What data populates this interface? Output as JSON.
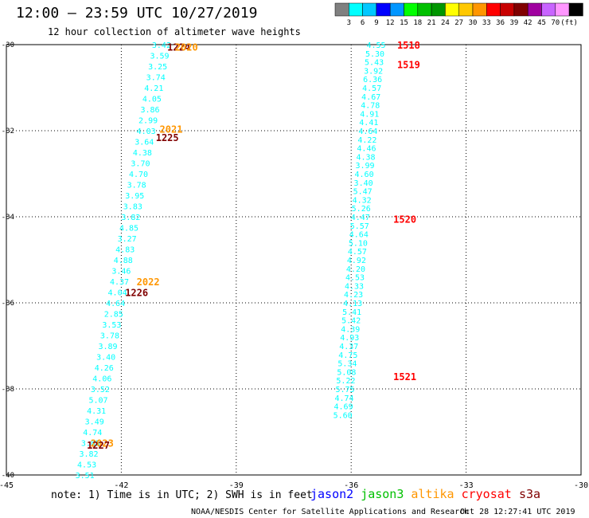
{
  "header": {
    "title": "12:00 – 23:59 UTC 10/27/2019",
    "subtitle": "12 hour collection of altimeter wave heights"
  },
  "colorbar": {
    "colors": [
      "#808080",
      "#00ffff",
      "#00c8ff",
      "#0000ff",
      "#0096ff",
      "#00ff00",
      "#00c000",
      "#009600",
      "#ffff00",
      "#ffc800",
      "#ff9600",
      "#ff0000",
      "#c80000",
      "#800000",
      "#a000a0",
      "#c864ff",
      "#ff96ff",
      "#000000"
    ],
    "labels": [
      "3",
      "6",
      "9",
      "12",
      "15",
      "18",
      "21",
      "24",
      "27",
      "30",
      "33",
      "36",
      "39",
      "42",
      "45",
      "70",
      "(ft)"
    ]
  },
  "chart_data": {
    "type": "scatter",
    "xlim": [
      -45,
      -30
    ],
    "ylim": [
      -40,
      -30
    ],
    "x_ticks": [
      "-45",
      "-42",
      "-39",
      "-36",
      "-33",
      "-30"
    ],
    "y_ticks": [
      "-30",
      "-32",
      "-34",
      "-36",
      "-38",
      "-40"
    ],
    "grid": true,
    "track_east": {
      "color": "#00ffff",
      "points": [
        {
          "x": -35.35,
          "y": -30.0,
          "v": "4.55"
        },
        {
          "x": -35.38,
          "y": -30.2,
          "v": "5.30"
        },
        {
          "x": -35.4,
          "y": -30.4,
          "v": "5.43"
        },
        {
          "x": -35.42,
          "y": -30.6,
          "v": "3.92"
        },
        {
          "x": -35.44,
          "y": -30.8,
          "v": "6.36"
        },
        {
          "x": -35.46,
          "y": -31.0,
          "v": "4.57"
        },
        {
          "x": -35.48,
          "y": -31.2,
          "v": "4.67"
        },
        {
          "x": -35.5,
          "y": -31.4,
          "v": "4.78"
        },
        {
          "x": -35.52,
          "y": -31.6,
          "v": "4.91"
        },
        {
          "x": -35.54,
          "y": -31.8,
          "v": "4.41"
        },
        {
          "x": -35.56,
          "y": -32.0,
          "v": "4.64"
        },
        {
          "x": -35.58,
          "y": -32.2,
          "v": "4.22"
        },
        {
          "x": -35.6,
          "y": -32.4,
          "v": "4.46"
        },
        {
          "x": -35.62,
          "y": -32.6,
          "v": "4.38"
        },
        {
          "x": -35.64,
          "y": -32.8,
          "v": "3.99"
        },
        {
          "x": -35.66,
          "y": -33.0,
          "v": "4.60"
        },
        {
          "x": -35.68,
          "y": -33.2,
          "v": "3.40"
        },
        {
          "x": -35.7,
          "y": -33.4,
          "v": "5.47"
        },
        {
          "x": -35.72,
          "y": -33.6,
          "v": "4.32"
        },
        {
          "x": -35.74,
          "y": -33.8,
          "v": "5.26"
        },
        {
          "x": -35.76,
          "y": -34.0,
          "v": "4.47"
        },
        {
          "x": -35.78,
          "y": -34.2,
          "v": "5.57"
        },
        {
          "x": -35.8,
          "y": -34.4,
          "v": "4.64"
        },
        {
          "x": -35.82,
          "y": -34.6,
          "v": "5.10"
        },
        {
          "x": -35.84,
          "y": -34.8,
          "v": "4.57"
        },
        {
          "x": -35.86,
          "y": -35.0,
          "v": "4.92"
        },
        {
          "x": -35.88,
          "y": -35.2,
          "v": "4.20"
        },
        {
          "x": -35.9,
          "y": -35.4,
          "v": "4.53"
        },
        {
          "x": -35.92,
          "y": -35.6,
          "v": "4.33"
        },
        {
          "x": -35.94,
          "y": -35.8,
          "v": "4.23"
        },
        {
          "x": -35.96,
          "y": -36.0,
          "v": "4.13"
        },
        {
          "x": -35.98,
          "y": -36.2,
          "v": "5.41"
        },
        {
          "x": -36.0,
          "y": -36.4,
          "v": "5.42"
        },
        {
          "x": -36.02,
          "y": -36.6,
          "v": "4.39"
        },
        {
          "x": -36.04,
          "y": -36.8,
          "v": "4.93"
        },
        {
          "x": -36.06,
          "y": -37.0,
          "v": "4.37"
        },
        {
          "x": -36.08,
          "y": -37.2,
          "v": "4.75"
        },
        {
          "x": -36.1,
          "y": -37.4,
          "v": "5.34"
        },
        {
          "x": -36.12,
          "y": -37.6,
          "v": "5.08"
        },
        {
          "x": -36.14,
          "y": -37.8,
          "v": "5.22"
        },
        {
          "x": -36.16,
          "y": -38.0,
          "v": "5.75"
        },
        {
          "x": -36.18,
          "y": -38.2,
          "v": "4.74"
        },
        {
          "x": -36.2,
          "y": -38.4,
          "v": "4.69"
        },
        {
          "x": -36.22,
          "y": -38.6,
          "v": "5.60"
        }
      ]
    },
    "track_west": {
      "color": "#00ffff",
      "points": [
        {
          "x": -40.95,
          "y": -30.0,
          "v": "3.42"
        },
        {
          "x": -41.0,
          "y": -30.25,
          "v": "3.59"
        },
        {
          "x": -41.05,
          "y": -30.5,
          "v": "3.25"
        },
        {
          "x": -41.1,
          "y": -30.75,
          "v": "3.74"
        },
        {
          "x": -41.15,
          "y": -31.0,
          "v": "4.21"
        },
        {
          "x": -41.2,
          "y": -31.25,
          "v": "4.05"
        },
        {
          "x": -41.25,
          "y": -31.5,
          "v": "3.86"
        },
        {
          "x": -41.3,
          "y": -31.75,
          "v": "2.99"
        },
        {
          "x": -41.35,
          "y": -32.0,
          "v": "4.03"
        },
        {
          "x": -41.4,
          "y": -32.25,
          "v": "3.64"
        },
        {
          "x": -41.45,
          "y": -32.5,
          "v": "4.38"
        },
        {
          "x": -41.5,
          "y": -32.75,
          "v": "3.70"
        },
        {
          "x": -41.55,
          "y": -33.0,
          "v": "4.70"
        },
        {
          "x": -41.6,
          "y": -33.25,
          "v": "3.78"
        },
        {
          "x": -41.65,
          "y": -33.5,
          "v": "3.95"
        },
        {
          "x": -41.7,
          "y": -33.75,
          "v": "3.83"
        },
        {
          "x": -41.75,
          "y": -34.0,
          "v": "3.82"
        },
        {
          "x": -41.8,
          "y": -34.25,
          "v": "4.85"
        },
        {
          "x": -41.85,
          "y": -34.5,
          "v": "3.27"
        },
        {
          "x": -41.9,
          "y": -34.75,
          "v": "4.83"
        },
        {
          "x": -41.95,
          "y": -35.0,
          "v": "4.88"
        },
        {
          "x": -42.0,
          "y": -35.25,
          "v": "3.46"
        },
        {
          "x": -42.05,
          "y": -35.5,
          "v": "4.37"
        },
        {
          "x": -42.1,
          "y": -35.75,
          "v": "4.04"
        },
        {
          "x": -42.15,
          "y": -36.0,
          "v": "4.64"
        },
        {
          "x": -42.2,
          "y": -36.25,
          "v": "2.85"
        },
        {
          "x": -42.25,
          "y": -36.5,
          "v": "3.53"
        },
        {
          "x": -42.3,
          "y": -36.75,
          "v": "3.78"
        },
        {
          "x": -42.35,
          "y": -37.0,
          "v": "3.89"
        },
        {
          "x": -42.4,
          "y": -37.25,
          "v": "3.40"
        },
        {
          "x": -42.45,
          "y": -37.5,
          "v": "4.26"
        },
        {
          "x": -42.5,
          "y": -37.75,
          "v": "4.06"
        },
        {
          "x": -42.55,
          "y": -38.0,
          "v": "3.52"
        },
        {
          "x": -42.6,
          "y": -38.25,
          "v": "5.07"
        },
        {
          "x": -42.65,
          "y": -38.5,
          "v": "4.31"
        },
        {
          "x": -42.7,
          "y": -38.75,
          "v": "3.49"
        },
        {
          "x": -42.75,
          "y": -39.0,
          "v": "4.74"
        },
        {
          "x": -42.8,
          "y": -39.25,
          "v": "3.85"
        },
        {
          "x": -42.85,
          "y": -39.5,
          "v": "3.82"
        },
        {
          "x": -42.9,
          "y": -39.75,
          "v": "4.53"
        },
        {
          "x": -42.95,
          "y": -40.0,
          "v": "3.51"
        }
      ]
    },
    "time_labels": [
      {
        "x": -40.8,
        "y": -30.05,
        "text": "1224",
        "color": "#800000"
      },
      {
        "x": -40.6,
        "y": -30.05,
        "text": "2020",
        "color": "#ff9600"
      },
      {
        "x": -41.0,
        "y": -31.95,
        "text": "2021",
        "color": "#ff9600"
      },
      {
        "x": -41.1,
        "y": -32.15,
        "text": "1225",
        "color": "#800000"
      },
      {
        "x": -41.6,
        "y": -35.5,
        "text": "2022",
        "color": "#ff9600"
      },
      {
        "x": -41.9,
        "y": -35.75,
        "text": "1226",
        "color": "#800000"
      },
      {
        "x": -42.8,
        "y": -39.25,
        "text": "2023",
        "color": "#ff9600"
      },
      {
        "x": -42.9,
        "y": -39.3,
        "text": "1227",
        "color": "#800000"
      },
      {
        "x": -34.8,
        "y": -30.0,
        "text": "1518",
        "color": "#ff0000"
      },
      {
        "x": -34.8,
        "y": -30.45,
        "text": "1519",
        "color": "#ff0000"
      },
      {
        "x": -34.9,
        "y": -34.05,
        "text": "1520",
        "color": "#ff0000"
      },
      {
        "x": -34.9,
        "y": -37.7,
        "text": "1521",
        "color": "#ff0000"
      }
    ]
  },
  "footer": {
    "note": "note: 1) Time is in UTC; 2) SWH is in feet",
    "legend": [
      {
        "label": "jason2",
        "color": "#0000ff"
      },
      {
        "label": "jason3",
        "color": "#00c000"
      },
      {
        "label": "altika",
        "color": "#ff9600"
      },
      {
        "label": "cryosat",
        "color": "#ff0000"
      },
      {
        "label": "s3a",
        "color": "#800000"
      }
    ],
    "credit": "NOAA/NESDIS Center for Satellite Applications and Research",
    "timestamp": "Oct 28 12:27:41 UTC 2019"
  }
}
